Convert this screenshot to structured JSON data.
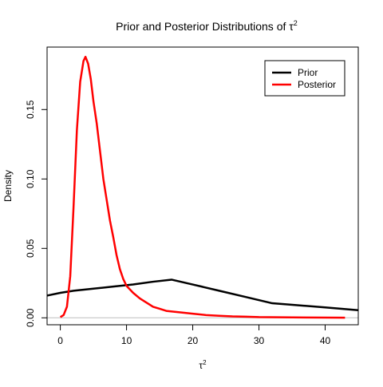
{
  "chart_data": {
    "type": "line",
    "title": {
      "text": "Prior and Posterior Distributions of ",
      "symbol": "τ",
      "superscript": "2"
    },
    "xlabel": {
      "symbol": "τ",
      "superscript": "2"
    },
    "ylabel": "Density",
    "xlim": [
      -2,
      45
    ],
    "ylim": [
      -0.005,
      0.195
    ],
    "x_ticks": [
      0,
      10,
      20,
      30,
      40
    ],
    "x_tick_labels": [
      "0",
      "10",
      "20",
      "30",
      "40"
    ],
    "y_ticks": [
      0.0,
      0.05,
      0.1,
      0.15
    ],
    "y_tick_labels": [
      "0.00",
      "0.05",
      "0.10",
      "0.15"
    ],
    "zero_line": true,
    "grid": false,
    "legend": {
      "position": "top-right",
      "entries": [
        {
          "label": "Prior",
          "color": "#000000"
        },
        {
          "label": "Posterior",
          "color": "#ff0000"
        }
      ]
    },
    "series": [
      {
        "name": "Prior",
        "color": "#000000",
        "x": [
          -2,
          0,
          2,
          5,
          8,
          11,
          14,
          16.8,
          20,
          24,
          28,
          32,
          36,
          40,
          45
        ],
        "y": [
          0.016,
          0.018,
          0.0195,
          0.021,
          0.0225,
          0.024,
          0.026,
          0.0275,
          0.024,
          0.0195,
          0.015,
          0.0105,
          0.009,
          0.0075,
          0.0055
        ]
      },
      {
        "name": "Posterior",
        "color": "#ff0000",
        "x": [
          0,
          0.5,
          1.0,
          1.5,
          2.0,
          2.5,
          3.0,
          3.5,
          3.8,
          4.2,
          4.6,
          5.0,
          5.5,
          6.0,
          6.5,
          7.0,
          7.5,
          8.0,
          8.5,
          9.0,
          9.5,
          10,
          11,
          12,
          13,
          14,
          15,
          16,
          17,
          18,
          19,
          20,
          22,
          24,
          26,
          28,
          30,
          35,
          40,
          43
        ],
        "y": [
          0.0005,
          0.002,
          0.008,
          0.03,
          0.08,
          0.135,
          0.17,
          0.185,
          0.188,
          0.183,
          0.172,
          0.156,
          0.14,
          0.12,
          0.1,
          0.085,
          0.07,
          0.058,
          0.045,
          0.035,
          0.028,
          0.023,
          0.018,
          0.014,
          0.011,
          0.008,
          0.0065,
          0.005,
          0.0045,
          0.004,
          0.0035,
          0.003,
          0.002,
          0.0015,
          0.001,
          0.0008,
          0.0005,
          0.0003,
          0.0002,
          0.0001
        ]
      }
    ]
  }
}
